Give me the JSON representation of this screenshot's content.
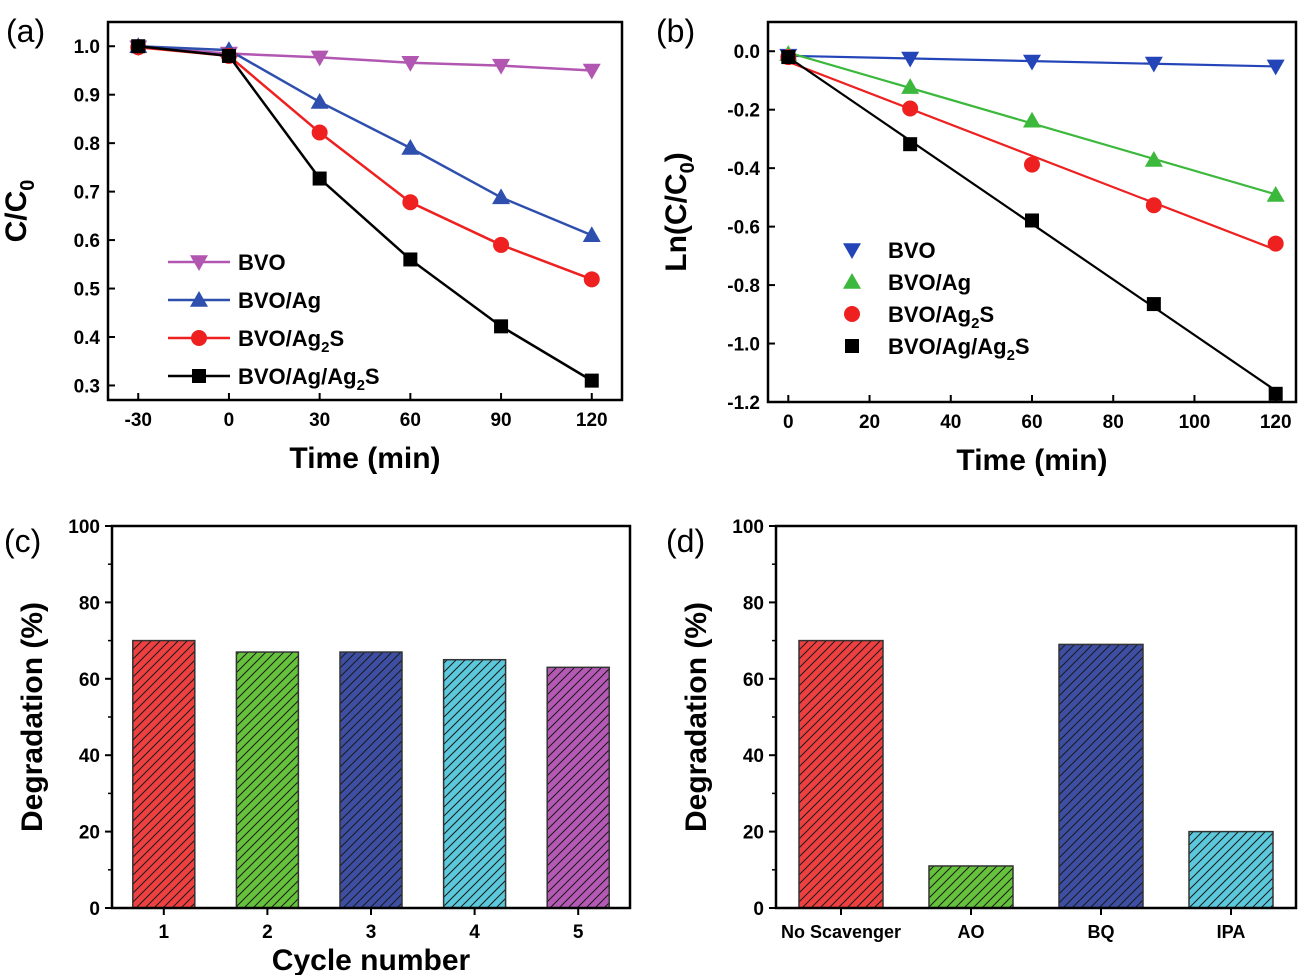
{
  "colors": {
    "BVO_a": "#b157b1",
    "BVO_b": "#2445b8",
    "BVO/Ag_a": "#2e4fad",
    "BVO/Ag_b": "#3cb83c",
    "BVO/Ag2S": "#ee2020",
    "BVO/Ag/Ag2S": "#000000",
    "bar_red": "#ee4040",
    "bar_green": "#66c23a",
    "bar_navy": "#3d4ea3",
    "bar_cyan": "#5bc8dc",
    "bar_purple": "#b45ab4"
  },
  "chart_data": [
    {
      "panel": "(a)",
      "type": "line",
      "xlabel": "Time (min)",
      "ylabel": "C/C0",
      "ylabel_main": "C/C",
      "ylabel_sub": "0",
      "xlim": [
        -40,
        130
      ],
      "ylim": [
        0.27,
        1.05
      ],
      "xticks": [
        -30,
        0,
        30,
        60,
        90,
        120
      ],
      "yticks": [
        0.3,
        0.4,
        0.5,
        0.6,
        0.7,
        0.8,
        0.9,
        1.0
      ],
      "ytick_labels": [
        "0.3",
        "0.4",
        "0.5",
        "0.6",
        "0.7",
        "0.8",
        "0.9",
        "1.0"
      ],
      "legend_position": "bottom-left",
      "series": [
        {
          "name": "BVO",
          "label_main": "BVO",
          "label_sub": "",
          "label_tail": "",
          "marker": "triangle-down",
          "color_key": "BVO_a",
          "x": [
            -30,
            0,
            30,
            60,
            90,
            120
          ],
          "y": [
            0.998,
            0.985,
            0.977,
            0.966,
            0.96,
            0.95
          ]
        },
        {
          "name": "BVO/Ag",
          "label_main": "BVO/Ag",
          "label_sub": "",
          "label_tail": "",
          "marker": "triangle-up",
          "color_key": "BVO/Ag_a",
          "x": [
            -30,
            0,
            30,
            60,
            90,
            120
          ],
          "y": [
            1.0,
            0.992,
            0.885,
            0.79,
            0.688,
            0.61
          ]
        },
        {
          "name": "BVO/Ag2S",
          "label_main": "BVO/Ag",
          "label_sub": "2",
          "label_tail": "S",
          "marker": "circle",
          "color_key": "BVO/Ag2S",
          "x": [
            -30,
            0,
            30,
            60,
            90,
            120
          ],
          "y": [
            0.998,
            0.98,
            0.822,
            0.678,
            0.59,
            0.519
          ]
        },
        {
          "name": "BVO/Ag/Ag2S",
          "label_main": "BVO/Ag/Ag",
          "label_sub": "2",
          "label_tail": "S",
          "marker": "square",
          "color_key": "BVO/Ag/Ag2S",
          "x": [
            -30,
            0,
            30,
            60,
            90,
            120
          ],
          "y": [
            1.0,
            0.98,
            0.727,
            0.56,
            0.422,
            0.31
          ]
        }
      ]
    },
    {
      "panel": "(b)",
      "type": "scatter",
      "xlabel": "Time (min)",
      "ylabel": "Ln(C/C0)",
      "ylabel_main": "Ln(C/C",
      "ylabel_sub": "0",
      "ylabel_tail": ")",
      "xlim": [
        -5,
        125
      ],
      "ylim": [
        -1.2,
        0.1
      ],
      "xticks": [
        0,
        20,
        40,
        60,
        80,
        100,
        120
      ],
      "yticks": [
        -1.2,
        -1.0,
        -0.8,
        -0.6,
        -0.4,
        -0.2,
        0.0
      ],
      "ytick_labels": [
        "-1.2",
        "-1.0",
        "-0.8",
        "-0.6",
        "-0.4",
        "-0.2",
        "0.0"
      ],
      "legend_position": "bottom-left",
      "fit_lines": true,
      "series": [
        {
          "name": "BVO",
          "label_main": "BVO",
          "label_sub": "",
          "label_tail": "",
          "marker": "triangle-down",
          "color_key": "BVO_b",
          "x": [
            0,
            30,
            60,
            90,
            120
          ],
          "y": [
            -0.015,
            -0.025,
            -0.035,
            -0.042,
            -0.052
          ]
        },
        {
          "name": "BVO/Ag",
          "label_main": "BVO/Ag",
          "label_sub": "",
          "label_tail": "",
          "marker": "triangle-up",
          "color_key": "BVO/Ag_b",
          "x": [
            0,
            30,
            60,
            90,
            120
          ],
          "y": [
            -0.01,
            -0.123,
            -0.238,
            -0.372,
            -0.492
          ]
        },
        {
          "name": "BVO/Ag2S",
          "label_main": "BVO/Ag",
          "label_sub": "2",
          "label_tail": "S",
          "marker": "circle",
          "color_key": "BVO/Ag2S",
          "x": [
            0,
            30,
            60,
            90,
            120
          ],
          "y": [
            -0.02,
            -0.196,
            -0.388,
            -0.527,
            -0.658
          ]
        },
        {
          "name": "BVO/Ag/Ag2S",
          "label_main": "BVO/Ag/Ag",
          "label_sub": "2",
          "label_tail": "S",
          "marker": "square",
          "color_key": "BVO/Ag/Ag2S",
          "x": [
            0,
            30,
            60,
            90,
            120
          ],
          "y": [
            -0.02,
            -0.318,
            -0.579,
            -0.865,
            -1.172
          ]
        }
      ]
    },
    {
      "panel": "(c)",
      "type": "bar",
      "xlabel": "Cycle number",
      "ylabel": "Degradation (%)",
      "ylim": [
        0,
        100
      ],
      "yticks": [
        0,
        20,
        40,
        60,
        80,
        100
      ],
      "ytick_labels": [
        "0",
        "20",
        "40",
        "60",
        "80",
        "100"
      ],
      "categories": [
        "1",
        "2",
        "3",
        "4",
        "5"
      ],
      "values": [
        70,
        67,
        67,
        65,
        63
      ],
      "bar_color_keys": [
        "bar_red",
        "bar_green",
        "bar_navy",
        "bar_cyan",
        "bar_purple"
      ]
    },
    {
      "panel": "(d)",
      "type": "bar",
      "xlabel": "",
      "ylabel": "Degradation (%)",
      "ylim": [
        0,
        100
      ],
      "yticks": [
        0,
        20,
        40,
        60,
        80,
        100
      ],
      "ytick_labels": [
        "0",
        "20",
        "40",
        "60",
        "80",
        "100"
      ],
      "categories": [
        "No Scavenger",
        "AO",
        "BQ",
        "IPA"
      ],
      "values": [
        70,
        11,
        69,
        20
      ],
      "bar_color_keys": [
        "bar_red",
        "bar_green",
        "bar_navy",
        "bar_cyan"
      ]
    }
  ]
}
